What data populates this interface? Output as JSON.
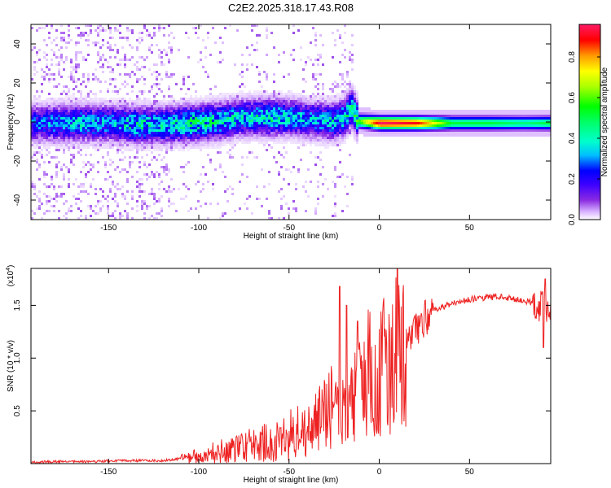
{
  "title": "C2E2.2025.318.17.43.R08",
  "chart_data": [
    {
      "type": "heatmap",
      "xlabel": "Height of straight line (km)",
      "ylabel": "Frequency (Hz)",
      "xlim": [
        -193,
        95
      ],
      "ylim": [
        -50,
        50
      ],
      "xticks": [
        -150,
        -100,
        -50,
        0,
        50
      ],
      "yticks": [
        -40,
        -20,
        0,
        20,
        40
      ],
      "colorbar": {
        "label": "Normalized spectral amplitude",
        "range": [
          0.0,
          0.96
        ],
        "ticks": [
          0.0,
          0.2,
          0.4,
          0.6,
          0.8
        ],
        "colors": [
          "#ffffff",
          "#d9b3ff",
          "#8a2be2",
          "#3c00ff",
          "#0000ff",
          "#00bfff",
          "#00ffcc",
          "#00ff66",
          "#00ff00",
          "#aaff00",
          "#ffff00",
          "#ff9900",
          "#ff0000",
          "#ff1a66"
        ]
      },
      "ridge": {
        "x": [
          -193,
          -180,
          -165,
          -150,
          -135,
          -120,
          -105,
          -90,
          -75,
          -60,
          -50,
          -40,
          -30,
          -25,
          -20,
          -16,
          -12,
          0,
          20,
          40,
          60,
          80,
          95
        ],
        "center_hz": [
          0,
          0,
          0,
          0,
          -1,
          -1,
          0,
          1,
          3,
          3,
          3,
          2,
          1,
          1,
          3,
          8,
          1,
          0,
          0,
          0,
          0,
          0,
          0
        ],
        "peak_amplitude": [
          0.35,
          0.4,
          0.45,
          0.4,
          0.5,
          0.45,
          0.55,
          0.5,
          0.45,
          0.5,
          0.45,
          0.4,
          0.45,
          0.45,
          0.5,
          0.5,
          0.6,
          0.96,
          0.9,
          0.55,
          0.55,
          0.5,
          0.55
        ]
      }
    },
    {
      "type": "line",
      "xlabel": "Height of straight line (km)",
      "ylabel": "SNR (10 * v/v)",
      "y_multiplier": "(x10",
      "y_multiplier_exp": "4",
      "y_multiplier_close": ")",
      "xlim": [
        -193,
        95
      ],
      "ylim": [
        0,
        1.85
      ],
      "xticks": [
        -150,
        -100,
        -50,
        0,
        50
      ],
      "yticks": [
        0.5,
        1.0,
        1.5
      ],
      "ytick_labels": [
        "0.5",
        "1.0",
        "1.5"
      ],
      "color": "#ee2222",
      "series": [
        {
          "name": "SNR",
          "x": [
            -193,
            -180,
            -160,
            -140,
            -120,
            -110,
            -100,
            -90,
            -80,
            -70,
            -60,
            -50,
            -40,
            -35,
            -30,
            -25,
            -20,
            -15,
            -12,
            -5,
            0,
            5,
            10,
            15,
            20,
            25,
            30,
            40,
            50,
            60,
            70,
            80,
            90,
            95
          ],
          "y": [
            0.01,
            0.02,
            0.02,
            0.03,
            0.03,
            0.05,
            0.08,
            0.12,
            0.15,
            0.2,
            0.22,
            0.28,
            0.35,
            0.45,
            0.5,
            0.6,
            0.65,
            0.6,
            0.85,
            0.95,
            1.05,
            1.05,
            1.1,
            1.15,
            1.3,
            1.4,
            1.45,
            1.52,
            1.56,
            1.58,
            1.58,
            1.55,
            1.5,
            1.5
          ],
          "spikes": [
            {
              "x": -22,
              "y": 1.68
            },
            {
              "x": -18,
              "y": 1.5
            },
            {
              "x": -12,
              "y": 1.35
            },
            {
              "x": 10,
              "y": 1.85
            },
            {
              "x": 91,
              "y": 1.1
            },
            {
              "x": 92,
              "y": 1.75
            }
          ]
        }
      ]
    }
  ]
}
